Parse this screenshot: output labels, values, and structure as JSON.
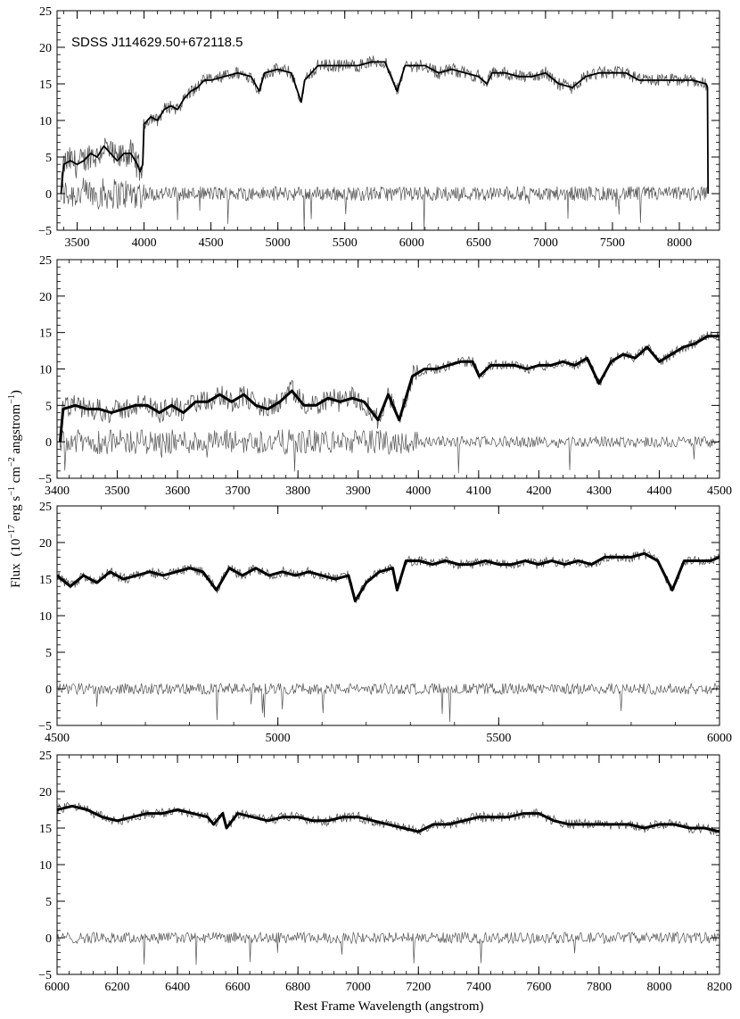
{
  "figure": {
    "ylabel_prefix": "Flux",
    "ylabel_unit_base": "(10",
    "ylabel_exp1": "−17",
    "ylabel_erg": " erg s",
    "ylabel_exp2": "−1",
    "ylabel_cm": " cm",
    "ylabel_exp3": "−2",
    "ylabel_ang": " angstrom",
    "ylabel_exp4": "−1",
    "ylabel_close": ")",
    "xlabel": "Rest Frame Wavelength  (angstrom)"
  },
  "chart_data": [
    {
      "type": "line",
      "title": "SDSS J114629.50+672118.5",
      "xlim": [
        3350,
        8300
      ],
      "ylim": [
        -5,
        25
      ],
      "xticks": [
        3500,
        4000,
        4500,
        5000,
        5500,
        6000,
        6500,
        7000,
        7500,
        8000
      ],
      "yticks": [
        -5,
        0,
        5,
        10,
        15,
        20,
        25
      ],
      "series": [
        {
          "role": "observed",
          "x": [
            3380,
            3400,
            3450,
            3500,
            3550,
            3600,
            3650,
            3700,
            3750,
            3800,
            3850,
            3900,
            3950,
            3970,
            3990,
            4000,
            4050,
            4100,
            4150,
            4200,
            4250,
            4300,
            4350,
            4400,
            4450,
            4500,
            4600,
            4700,
            4800,
            4861,
            4900,
            5000,
            5100,
            5175,
            5200,
            5300,
            5400,
            5500,
            5600,
            5700,
            5800,
            5890,
            5950,
            6000,
            6100,
            6200,
            6300,
            6400,
            6500,
            6563,
            6600,
            6700,
            6800,
            6900,
            7000,
            7100,
            7200,
            7300,
            7400,
            7500,
            7600,
            7700,
            7800,
            7900,
            8000,
            8100,
            8200,
            8210,
            8215
          ],
          "y": [
            0,
            4,
            4.5,
            4,
            4.5,
            5.5,
            5,
            6.5,
            5.5,
            4.5,
            5.5,
            5.5,
            4,
            3,
            4,
            9.5,
            10.5,
            10,
            11.5,
            12,
            11.5,
            13,
            14,
            14.5,
            15.5,
            15.5,
            16,
            16.5,
            16,
            14,
            16.5,
            17,
            16.5,
            12.5,
            15.5,
            17.5,
            17.5,
            17.5,
            17.5,
            18,
            18,
            14,
            17.5,
            17.5,
            17.5,
            16.5,
            17,
            16.5,
            16,
            15,
            16.5,
            16.5,
            16,
            16,
            16.5,
            15,
            14.5,
            16,
            16.5,
            16.5,
            16.5,
            15.5,
            15.5,
            15.5,
            15.5,
            15.5,
            15,
            14.5,
            0
          ]
        },
        {
          "role": "residual",
          "x": [
            3380,
            3500,
            3700,
            4000,
            4500,
            5000,
            5500,
            6000,
            6500,
            7000,
            7500,
            8000,
            8200
          ],
          "y": [
            0,
            0,
            0,
            0,
            0,
            0,
            0,
            0,
            0,
            0,
            0,
            0,
            0
          ]
        }
      ]
    },
    {
      "type": "line",
      "xlim": [
        3400,
        4500
      ],
      "ylim": [
        -5,
        25
      ],
      "xticks": [
        3400,
        3500,
        3600,
        3700,
        3800,
        3900,
        4000,
        4100,
        4200,
        4300,
        4400,
        4500
      ],
      "yticks": [
        -5,
        0,
        5,
        10,
        15,
        20,
        25
      ],
      "series": [
        {
          "role": "observed",
          "x": [
            3405,
            3410,
            3430,
            3450,
            3470,
            3490,
            3510,
            3530,
            3550,
            3570,
            3590,
            3610,
            3630,
            3650,
            3670,
            3690,
            3710,
            3730,
            3750,
            3770,
            3790,
            3810,
            3830,
            3850,
            3870,
            3890,
            3910,
            3933,
            3950,
            3968,
            3990,
            4010,
            4030,
            4050,
            4070,
            4090,
            4101,
            4120,
            4140,
            4160,
            4180,
            4200,
            4220,
            4240,
            4260,
            4280,
            4300,
            4320,
            4340,
            4360,
            4380,
            4400,
            4420,
            4440,
            4460,
            4480,
            4500
          ],
          "y": [
            0,
            4.5,
            5,
            4.5,
            4.5,
            4,
            4.5,
            5,
            5,
            4,
            5,
            4,
            5.5,
            5.5,
            6.5,
            5.5,
            6.5,
            5,
            4.5,
            5.5,
            7,
            5,
            5,
            6,
            5.5,
            6,
            5.5,
            3,
            6.5,
            3,
            9,
            10,
            10,
            10.5,
            11,
            11,
            9,
            10.5,
            10.5,
            10.5,
            10,
            10.5,
            10.5,
            11,
            10.5,
            11.5,
            8,
            11,
            12,
            11.5,
            13,
            11,
            12,
            13,
            13.5,
            14.5,
            14.5
          ]
        },
        {
          "role": "residual",
          "x": [
            3405,
            3500,
            3600,
            3700,
            3800,
            3900,
            4000,
            4100,
            4200,
            4300,
            4400,
            4500
          ],
          "y": [
            0,
            0,
            0,
            0,
            0,
            0,
            0,
            0,
            0,
            0,
            0,
            0
          ]
        }
      ]
    },
    {
      "type": "line",
      "xlim": [
        4500,
        6000
      ],
      "ylim": [
        -5,
        25
      ],
      "xticks": [
        4500,
        5000,
        5500,
        6000
      ],
      "yticks": [
        -5,
        0,
        5,
        10,
        15,
        20,
        25
      ],
      "series": [
        {
          "role": "observed",
          "x": [
            4500,
            4530,
            4560,
            4590,
            4620,
            4650,
            4680,
            4710,
            4740,
            4770,
            4800,
            4830,
            4861,
            4890,
            4920,
            4950,
            4980,
            5010,
            5040,
            5070,
            5100,
            5130,
            5160,
            5175,
            5200,
            5230,
            5260,
            5270,
            5290,
            5320,
            5350,
            5380,
            5410,
            5440,
            5470,
            5500,
            5530,
            5560,
            5590,
            5620,
            5650,
            5680,
            5710,
            5740,
            5770,
            5800,
            5830,
            5860,
            5893,
            5920,
            5950,
            5980,
            6000
          ],
          "y": [
            15.5,
            14,
            15.5,
            14.5,
            16,
            15,
            15.5,
            16,
            15.5,
            16,
            16.5,
            16,
            13.5,
            16.5,
            15.5,
            16.5,
            15.5,
            16,
            15.5,
            16,
            15.5,
            15,
            15.5,
            12,
            14.5,
            16,
            16.5,
            13.5,
            17.5,
            17.5,
            17,
            17.5,
            17,
            17,
            17.5,
            17,
            17,
            17.5,
            17,
            17.5,
            17,
            17.5,
            17,
            18,
            18,
            18,
            18.5,
            17.5,
            13.5,
            17.5,
            17.5,
            17.5,
            18
          ]
        },
        {
          "role": "residual",
          "x": [
            4500,
            4750,
            5000,
            5250,
            5500,
            5750,
            6000
          ],
          "y": [
            0,
            0,
            0,
            0,
            0,
            0,
            0
          ]
        }
      ]
    },
    {
      "type": "line",
      "xlim": [
        6000,
        8200
      ],
      "ylim": [
        -5,
        25
      ],
      "xticks": [
        6000,
        6200,
        6400,
        6600,
        6800,
        7000,
        7200,
        7400,
        7600,
        7800,
        8000,
        8200
      ],
      "yticks": [
        -5,
        0,
        5,
        10,
        15,
        20,
        25
      ],
      "series": [
        {
          "role": "observed",
          "x": [
            6000,
            6050,
            6100,
            6150,
            6200,
            6250,
            6300,
            6350,
            6400,
            6450,
            6500,
            6520,
            6550,
            6563,
            6600,
            6650,
            6700,
            6750,
            6800,
            6850,
            6900,
            6950,
            7000,
            7050,
            7100,
            7150,
            7200,
            7250,
            7300,
            7350,
            7400,
            7450,
            7500,
            7550,
            7600,
            7650,
            7700,
            7750,
            7800,
            7850,
            7900,
            7950,
            8000,
            8050,
            8100,
            8150,
            8200
          ],
          "y": [
            17.5,
            18,
            17.5,
            16.5,
            16,
            16.5,
            17,
            17,
            17.5,
            17,
            16.5,
            15.5,
            17,
            15,
            17,
            16.5,
            16,
            16.5,
            16.5,
            16,
            16,
            16.5,
            16.5,
            16,
            15.5,
            15,
            14.5,
            15.5,
            15.5,
            16,
            16.5,
            16.5,
            16.5,
            17,
            17,
            16,
            15.5,
            15.5,
            15.5,
            15.5,
            15.5,
            15,
            15.5,
            15.5,
            15,
            15,
            14.5
          ]
        },
        {
          "role": "residual",
          "x": [
            6000,
            6400,
            6800,
            7200,
            7600,
            8000,
            8200
          ],
          "y": [
            0,
            0,
            0,
            0,
            0,
            0,
            0
          ]
        }
      ]
    }
  ]
}
